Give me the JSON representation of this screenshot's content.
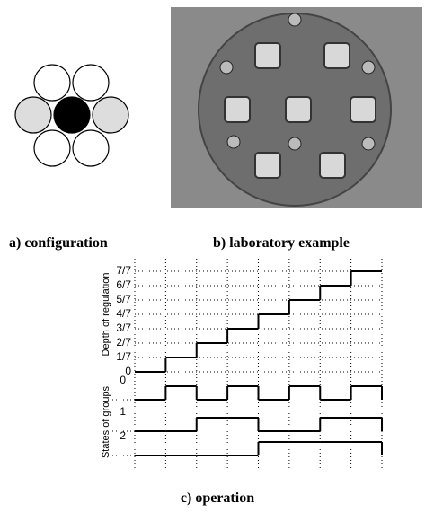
{
  "captions": {
    "a": "a) configuration",
    "b": "b) laboratory example",
    "c": "c) operation"
  },
  "chart": {
    "depth_label": "Depth of regulation",
    "states_label": "States of groups",
    "depth_ticks": [
      "0",
      "1/7",
      "2/7",
      "3/7",
      "4/7",
      "5/7",
      "6/7",
      "7/7"
    ],
    "depth_levels": [
      0,
      1,
      2,
      3,
      4,
      5,
      6,
      7
    ],
    "groups": [
      {
        "name": "0",
        "states": [
          0,
          1,
          0,
          1,
          0,
          1,
          0,
          1
        ]
      },
      {
        "name": "1",
        "states": [
          0,
          0,
          1,
          1,
          0,
          0,
          1,
          1
        ]
      },
      {
        "name": "2",
        "states": [
          0,
          0,
          0,
          0,
          1,
          1,
          1,
          1
        ]
      }
    ]
  }
}
